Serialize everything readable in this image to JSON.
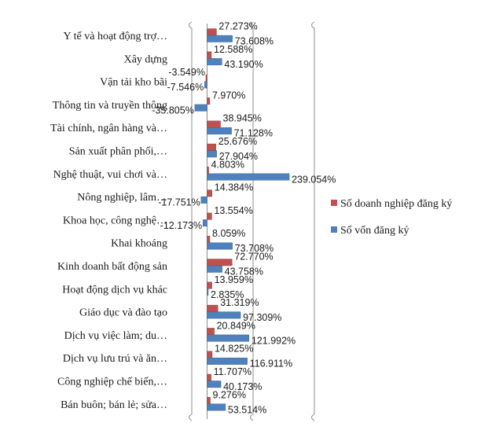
{
  "chart_data": {
    "type": "bar",
    "orientation": "horizontal",
    "categories": [
      "Y tế và hoạt động trợ…",
      "Xây dựng",
      "Vận tải kho bãi",
      "Thông tin và truyền thông",
      "Tài chính, ngân hàng và…",
      "Sản xuất phân phối,…",
      "Nghệ thuật, vui chơi và…",
      "Nông nghiệp, lâm…",
      "Khoa học, công nghệ…",
      "Khai khoáng",
      "Kinh doanh bất động sản",
      "Hoạt động dịch vụ khác",
      "Giáo  dục và đào tạo",
      "Dịch vụ việc làm;  du…",
      "Dịch vụ lưu trú và ăn…",
      "Công nghiệp chế biến,…",
      "Bán buôn; bán lẻ; sửa…"
    ],
    "series": [
      {
        "name": "Số doanh nghiệp đăng ký",
        "color": "#c0504d",
        "values": [
          27.273,
          12.588,
          -3.549,
          7.97,
          38.945,
          25.676,
          4.803,
          14.384,
          13.554,
          8.059,
          72.77,
          13.959,
          31.319,
          20.849,
          14.825,
          11.707,
          9.276
        ],
        "labels": [
          "27.273%",
          "12.588%",
          "-3.549%",
          "7.970%",
          "38.945%",
          "25.676%",
          "4.803%",
          "14.384%",
          "13.554%",
          "8.059%",
          "72.770%",
          "13.959%",
          "31.319%",
          "20.849%",
          "14.825%",
          "11.707%",
          "9.276%"
        ]
      },
      {
        "name": "Số vốn đăng ký",
        "color": "#4f81bd",
        "values": [
          73.608,
          43.19,
          -7.546,
          -35.805,
          71.128,
          27.904,
          239.054,
          -17.751,
          -12.173,
          73.708,
          43.758,
          2.835,
          97.309,
          121.992,
          116.911,
          40.173,
          53.514
        ],
        "labels": [
          "73.608%",
          "43.190%",
          "-7.546%",
          "-35.805%",
          "71.128%",
          "27.904%",
          "239.054%",
          "-17.751%",
          "-12.173%",
          "73.708%",
          "43.758%",
          "2.835%",
          "97.309%",
          "121.992%",
          "116.911%",
          "40.173%",
          "53.514%"
        ]
      }
    ],
    "legend": "right",
    "grid": true,
    "xlim": [
      -50,
      250
    ]
  }
}
